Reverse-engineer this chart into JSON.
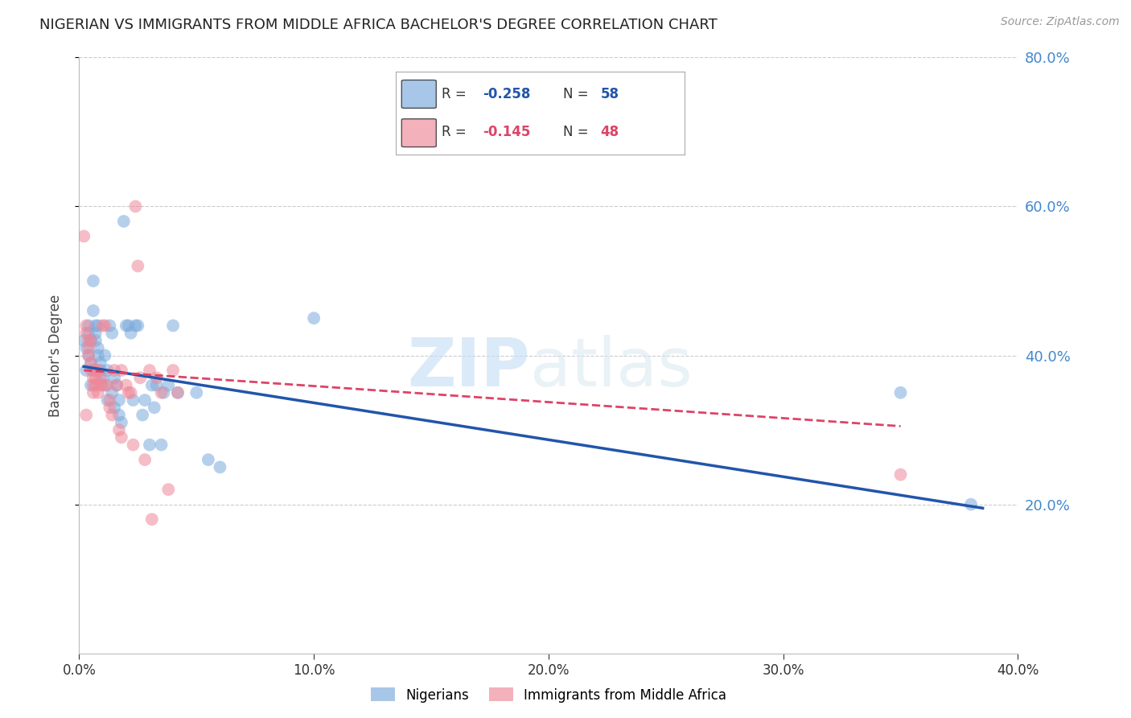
{
  "title": "NIGERIAN VS IMMIGRANTS FROM MIDDLE AFRICA BACHELOR'S DEGREE CORRELATION CHART",
  "source": "Source: ZipAtlas.com",
  "ylabel": "Bachelor's Degree",
  "watermark": "ZIPatlas",
  "xlim": [
    0.0,
    0.4
  ],
  "ylim": [
    0.0,
    0.8
  ],
  "xticks": [
    0.0,
    0.1,
    0.2,
    0.3,
    0.4
  ],
  "yticks": [
    0.2,
    0.4,
    0.6,
    0.8
  ],
  "ytick_labels": [
    "20.0%",
    "40.0%",
    "60.0%",
    "80.0%"
  ],
  "xtick_labels": [
    "0.0%",
    "10.0%",
    "20.0%",
    "30.0%",
    "40.0%"
  ],
  "nigerian_R": -0.258,
  "nigerian_N": 58,
  "immigrant_R": -0.145,
  "immigrant_N": 48,
  "nigerian_color": "#7aaadd",
  "immigrant_color": "#ee8899",
  "trendline_nigerian_color": "#2255aa",
  "trendline_immigrant_color": "#dd4466",
  "background_color": "#ffffff",
  "grid_color": "#cccccc",
  "title_color": "#222222",
  "right_tick_color": "#4488cc",
  "nigerian_points": [
    [
      0.002,
      0.42
    ],
    [
      0.003,
      0.38
    ],
    [
      0.003,
      0.41
    ],
    [
      0.004,
      0.43
    ],
    [
      0.004,
      0.44
    ],
    [
      0.004,
      0.4
    ],
    [
      0.005,
      0.39
    ],
    [
      0.005,
      0.42
    ],
    [
      0.005,
      0.36
    ],
    [
      0.006,
      0.38
    ],
    [
      0.006,
      0.5
    ],
    [
      0.006,
      0.46
    ],
    [
      0.007,
      0.44
    ],
    [
      0.007,
      0.43
    ],
    [
      0.007,
      0.42
    ],
    [
      0.008,
      0.41
    ],
    [
      0.008,
      0.4
    ],
    [
      0.008,
      0.44
    ],
    [
      0.009,
      0.38
    ],
    [
      0.009,
      0.39
    ],
    [
      0.01,
      0.37
    ],
    [
      0.011,
      0.36
    ],
    [
      0.011,
      0.4
    ],
    [
      0.012,
      0.38
    ],
    [
      0.012,
      0.34
    ],
    [
      0.013,
      0.44
    ],
    [
      0.014,
      0.43
    ],
    [
      0.014,
      0.35
    ],
    [
      0.015,
      0.33
    ],
    [
      0.015,
      0.37
    ],
    [
      0.016,
      0.36
    ],
    [
      0.017,
      0.34
    ],
    [
      0.017,
      0.32
    ],
    [
      0.018,
      0.31
    ],
    [
      0.019,
      0.58
    ],
    [
      0.02,
      0.44
    ],
    [
      0.021,
      0.44
    ],
    [
      0.022,
      0.43
    ],
    [
      0.023,
      0.34
    ],
    [
      0.024,
      0.44
    ],
    [
      0.025,
      0.44
    ],
    [
      0.027,
      0.32
    ],
    [
      0.028,
      0.34
    ],
    [
      0.03,
      0.28
    ],
    [
      0.031,
      0.36
    ],
    [
      0.032,
      0.33
    ],
    [
      0.033,
      0.36
    ],
    [
      0.035,
      0.28
    ],
    [
      0.036,
      0.35
    ],
    [
      0.038,
      0.36
    ],
    [
      0.04,
      0.44
    ],
    [
      0.042,
      0.35
    ],
    [
      0.05,
      0.35
    ],
    [
      0.055,
      0.26
    ],
    [
      0.06,
      0.25
    ],
    [
      0.1,
      0.45
    ],
    [
      0.35,
      0.35
    ],
    [
      0.38,
      0.2
    ]
  ],
  "immigrant_points": [
    [
      0.002,
      0.56
    ],
    [
      0.003,
      0.44
    ],
    [
      0.003,
      0.43
    ],
    [
      0.004,
      0.42
    ],
    [
      0.004,
      0.41
    ],
    [
      0.004,
      0.4
    ],
    [
      0.005,
      0.39
    ],
    [
      0.005,
      0.38
    ],
    [
      0.005,
      0.42
    ],
    [
      0.006,
      0.37
    ],
    [
      0.006,
      0.36
    ],
    [
      0.006,
      0.35
    ],
    [
      0.007,
      0.38
    ],
    [
      0.007,
      0.37
    ],
    [
      0.007,
      0.36
    ],
    [
      0.008,
      0.35
    ],
    [
      0.008,
      0.38
    ],
    [
      0.009,
      0.36
    ],
    [
      0.009,
      0.37
    ],
    [
      0.01,
      0.36
    ],
    [
      0.01,
      0.44
    ],
    [
      0.011,
      0.44
    ],
    [
      0.012,
      0.36
    ],
    [
      0.013,
      0.34
    ],
    [
      0.013,
      0.33
    ],
    [
      0.014,
      0.32
    ],
    [
      0.015,
      0.38
    ],
    [
      0.016,
      0.36
    ],
    [
      0.017,
      0.3
    ],
    [
      0.018,
      0.29
    ],
    [
      0.018,
      0.38
    ],
    [
      0.02,
      0.36
    ],
    [
      0.021,
      0.35
    ],
    [
      0.022,
      0.35
    ],
    [
      0.023,
      0.28
    ],
    [
      0.024,
      0.6
    ],
    [
      0.025,
      0.52
    ],
    [
      0.026,
      0.37
    ],
    [
      0.028,
      0.26
    ],
    [
      0.03,
      0.38
    ],
    [
      0.031,
      0.18
    ],
    [
      0.033,
      0.37
    ],
    [
      0.035,
      0.35
    ],
    [
      0.038,
      0.22
    ],
    [
      0.04,
      0.38
    ],
    [
      0.042,
      0.35
    ],
    [
      0.35,
      0.24
    ],
    [
      0.003,
      0.32
    ]
  ],
  "nigerian_trendline": [
    [
      0.002,
      0.385
    ],
    [
      0.385,
      0.195
    ]
  ],
  "immigrant_trendline": [
    [
      0.002,
      0.38
    ],
    [
      0.35,
      0.305
    ]
  ]
}
